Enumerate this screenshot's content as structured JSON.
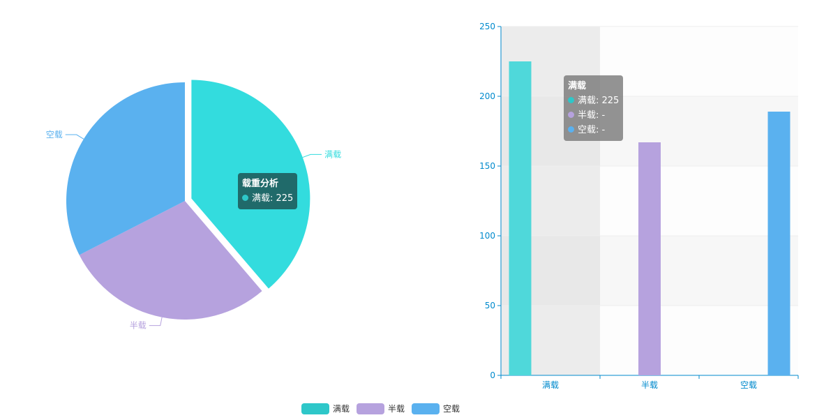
{
  "chart_data": [
    {
      "type": "pie",
      "title": "",
      "series_name": "载重分析",
      "slices": [
        {
          "label": "满载",
          "value": 225,
          "color": "#33dcde"
        },
        {
          "label": "半载",
          "value": 167,
          "color": "#b6a2de"
        },
        {
          "label": "空载",
          "value": 189,
          "color": "#5ab1ef"
        }
      ],
      "selected": "满载"
    },
    {
      "type": "bar",
      "title": "",
      "categories": [
        "满载",
        "半载",
        "空载"
      ],
      "series": [
        {
          "name": "满载",
          "values": [
            225,
            null,
            null
          ],
          "color": "#4fd8da"
        },
        {
          "name": "半载",
          "values": [
            null,
            167,
            null
          ],
          "color": "#b6a2de"
        },
        {
          "name": "空载",
          "values": [
            null,
            null,
            189
          ],
          "color": "#5ab1ef"
        }
      ],
      "ylim": [
        0,
        250
      ],
      "yticks": [
        0,
        50,
        100,
        150,
        200,
        250
      ],
      "highlighted_category": "满载",
      "axis_color": "#008acd"
    }
  ],
  "pie_tooltip": {
    "title": "载重分析",
    "line": "满载: 225",
    "color": "#2ec7c9"
  },
  "bar_tooltip": {
    "title": "满载",
    "rows": [
      {
        "text": "满载: 225",
        "color": "#2ec7c9"
      },
      {
        "text": "半载: -",
        "color": "#b6a2de"
      },
      {
        "text": "空载: -",
        "color": "#5ab1ef"
      }
    ]
  },
  "legend": [
    {
      "label": "满载",
      "color": "#2ec7c9"
    },
    {
      "label": "半载",
      "color": "#b6a2de"
    },
    {
      "label": "空载",
      "color": "#5ab1ef"
    }
  ]
}
